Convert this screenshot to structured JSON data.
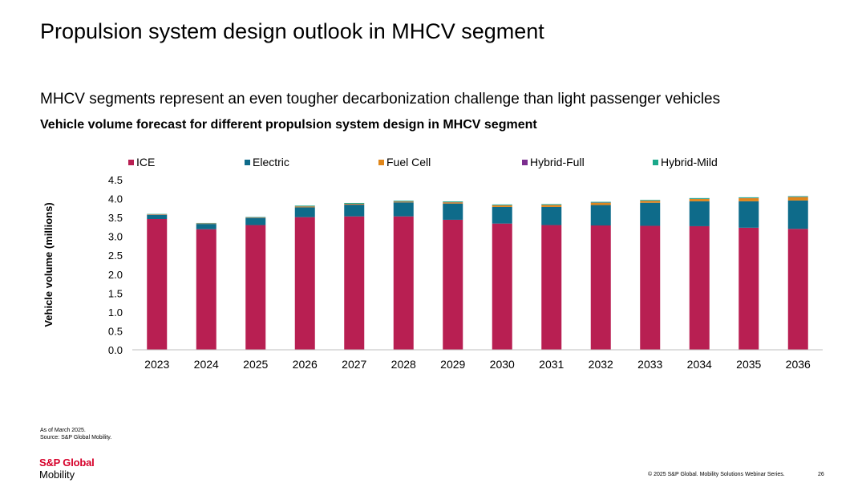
{
  "page": {
    "title": "Propulsion system design outlook in MHCV segment",
    "subtitle": "MHCV segments represent an even tougher decarbonization challenge than light passenger vehicles",
    "chart_heading": "Vehicle volume forecast for different propulsion system design in MHCV segment",
    "note_line1": "As of March 2025.",
    "note_line2": "Source: S&P Global Mobility.",
    "logo_line1": "S&P Global",
    "logo_line2": "Mobility",
    "copyright": "© 2025 S&P Global. Mobility Solutions Webinar Series.",
    "page_number": "26"
  },
  "chart_data": {
    "type": "bar",
    "stacked": true,
    "title": "Vehicle volume forecast for different propulsion system design in MHCV segment",
    "xlabel": "",
    "ylabel": "Vehicle volume (millions)",
    "ylim": [
      0,
      4.5
    ],
    "yticks": [
      "0.0",
      "0.5",
      "1.0",
      "1.5",
      "2.0",
      "2.5",
      "3.0",
      "3.5",
      "4.0",
      "4.5"
    ],
    "grid": false,
    "legend": "top",
    "categories": [
      "2023",
      "2024",
      "2025",
      "2026",
      "2027",
      "2028",
      "2029",
      "2030",
      "2031",
      "2032",
      "2033",
      "2034",
      "2035",
      "2036"
    ],
    "series": [
      {
        "name": "ICE",
        "color": "#b81f52",
        "values": [
          3.46,
          3.19,
          3.3,
          3.51,
          3.53,
          3.53,
          3.44,
          3.34,
          3.3,
          3.29,
          3.28,
          3.27,
          3.23,
          3.2
        ]
      },
      {
        "name": "Electric",
        "color": "#0e6b8a",
        "values": [
          0.11,
          0.14,
          0.19,
          0.26,
          0.31,
          0.37,
          0.43,
          0.44,
          0.48,
          0.54,
          0.61,
          0.66,
          0.7,
          0.75
        ]
      },
      {
        "name": "Fuel Cell",
        "color": "#e0861a",
        "values": [
          0.01,
          0.01,
          0.01,
          0.02,
          0.02,
          0.02,
          0.03,
          0.04,
          0.05,
          0.06,
          0.05,
          0.06,
          0.08,
          0.09
        ]
      },
      {
        "name": "Hybrid-Full",
        "color": "#7b2d8e",
        "values": [
          0.005,
          0.005,
          0.005,
          0.005,
          0.005,
          0.005,
          0.005,
          0.005,
          0.005,
          0.005,
          0.005,
          0.005,
          0.005,
          0.005
        ]
      },
      {
        "name": "Hybrid-Mild",
        "color": "#1aa88a",
        "values": [
          0.01,
          0.01,
          0.01,
          0.02,
          0.02,
          0.02,
          0.02,
          0.02,
          0.02,
          0.02,
          0.02,
          0.02,
          0.02,
          0.02
        ]
      }
    ]
  }
}
